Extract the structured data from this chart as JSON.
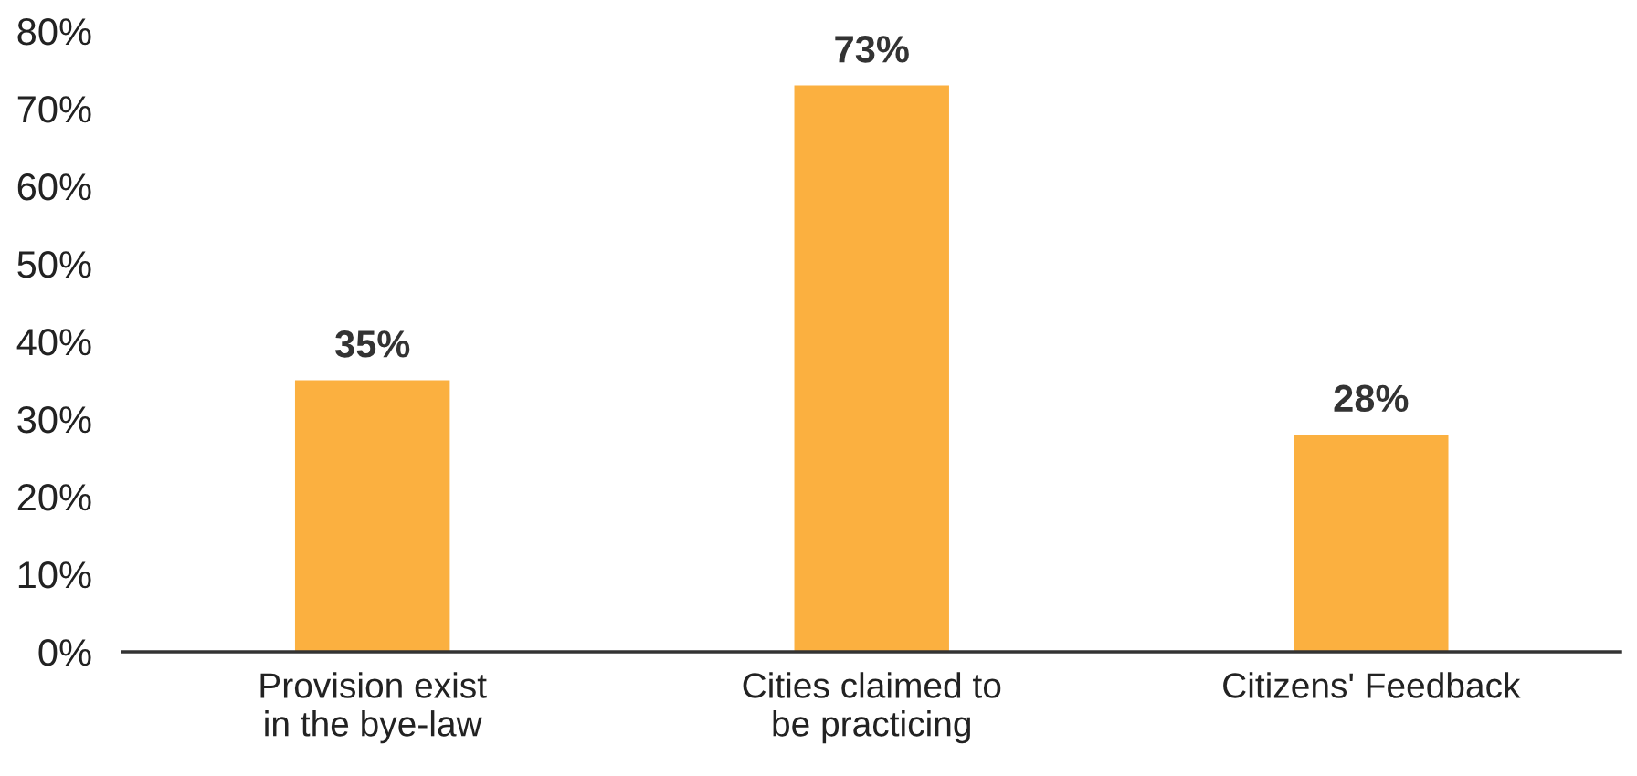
{
  "chart_data": {
    "type": "bar",
    "categories": [
      "Provision exist\nin the bye-law",
      "Cities claimed to\nbe practicing",
      "Citizens' Feedback"
    ],
    "values": [
      35,
      73,
      28
    ],
    "value_labels": [
      "35%",
      "73%",
      "28%"
    ],
    "color": "#fbb040",
    "ylim": [
      0,
      80
    ],
    "yticks": [
      {
        "value": 0,
        "label": "0%"
      },
      {
        "value": 10,
        "label": "10%"
      },
      {
        "value": 20,
        "label": "20%"
      },
      {
        "value": 30,
        "label": "30%"
      },
      {
        "value": 40,
        "label": "40%"
      },
      {
        "value": 50,
        "label": "50%"
      },
      {
        "value": 60,
        "label": "60%"
      },
      {
        "value": 70,
        "label": "70%"
      },
      {
        "value": 80,
        "label": "80%"
      }
    ],
    "grid": false
  }
}
